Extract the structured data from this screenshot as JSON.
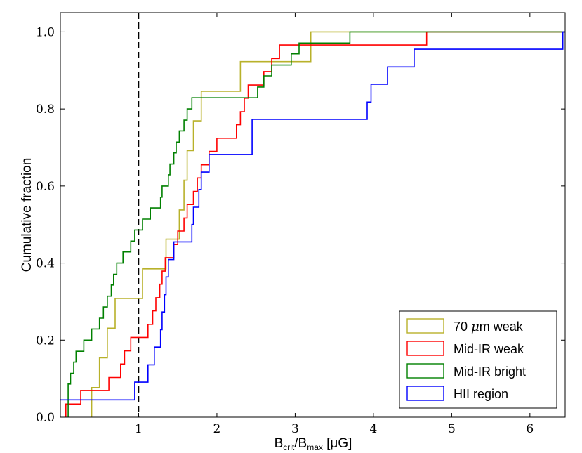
{
  "chart_data": {
    "type": "line",
    "step": true,
    "xlabel": {
      "base": "B",
      "sub1": "crit",
      "mid": "/B",
      "sub2": "max",
      "unit": " [μG]"
    },
    "ylabel": "Cumulative fraction",
    "xlim": [
      0,
      6.45
    ],
    "ylim": [
      0.0,
      1.05
    ],
    "xticks": [
      1,
      2,
      3,
      4,
      5,
      6
    ],
    "xtick_labels": [
      "1",
      "2",
      "3",
      "4",
      "5",
      "6"
    ],
    "yticks": [
      0.0,
      0.2,
      0.4,
      0.6,
      0.8,
      1.0
    ],
    "ytick_labels": [
      "0.0",
      "0.2",
      "0.4",
      "0.6",
      "0.8",
      "1.0"
    ],
    "vline": {
      "x": 1.0,
      "style": "dashed"
    },
    "legend_position": "bottom-right",
    "series": [
      {
        "name": "70 μm weak",
        "legend_label": {
          "num": "70 ",
          "mu": "μ",
          "rest": "m weak"
        },
        "color": "#b8b12a",
        "points": [
          [
            0.4,
            0.0
          ],
          [
            0.4,
            0.077
          ],
          [
            0.5,
            0.154
          ],
          [
            0.6,
            0.231
          ],
          [
            0.7,
            0.308
          ],
          [
            1.05,
            0.385
          ],
          [
            1.35,
            0.462
          ],
          [
            1.52,
            0.538
          ],
          [
            1.58,
            0.615
          ],
          [
            1.62,
            0.692
          ],
          [
            1.7,
            0.769
          ],
          [
            1.8,
            0.846
          ],
          [
            2.3,
            0.923
          ],
          [
            3.2,
            1.0
          ],
          [
            6.45,
            1.0
          ]
        ]
      },
      {
        "name": "Mid-IR weak",
        "color": "#ff0000",
        "points": [
          [
            0.07,
            0.0
          ],
          [
            0.07,
            0.034
          ],
          [
            0.26,
            0.069
          ],
          [
            0.62,
            0.103
          ],
          [
            0.77,
            0.138
          ],
          [
            0.82,
            0.172
          ],
          [
            0.9,
            0.207
          ],
          [
            1.12,
            0.241
          ],
          [
            1.18,
            0.276
          ],
          [
            1.22,
            0.31
          ],
          [
            1.27,
            0.345
          ],
          [
            1.3,
            0.379
          ],
          [
            1.34,
            0.414
          ],
          [
            1.45,
            0.448
          ],
          [
            1.5,
            0.483
          ],
          [
            1.58,
            0.517
          ],
          [
            1.62,
            0.552
          ],
          [
            1.7,
            0.586
          ],
          [
            1.75,
            0.621
          ],
          [
            1.8,
            0.655
          ],
          [
            1.9,
            0.69
          ],
          [
            2.0,
            0.724
          ],
          [
            2.25,
            0.759
          ],
          [
            2.3,
            0.793
          ],
          [
            2.35,
            0.828
          ],
          [
            2.4,
            0.862
          ],
          [
            2.6,
            0.897
          ],
          [
            2.7,
            0.931
          ],
          [
            2.8,
            0.966
          ],
          [
            4.68,
            1.0
          ],
          [
            6.45,
            1.0
          ]
        ]
      },
      {
        "name": "Mid-IR bright",
        "color": "#008000",
        "points": [
          [
            0.1,
            0.0
          ],
          [
            0.1,
            0.086
          ],
          [
            0.13,
            0.114
          ],
          [
            0.17,
            0.143
          ],
          [
            0.2,
            0.171
          ],
          [
            0.3,
            0.2
          ],
          [
            0.4,
            0.229
          ],
          [
            0.5,
            0.257
          ],
          [
            0.55,
            0.286
          ],
          [
            0.6,
            0.314
          ],
          [
            0.65,
            0.343
          ],
          [
            0.68,
            0.371
          ],
          [
            0.72,
            0.4
          ],
          [
            0.8,
            0.429
          ],
          [
            0.9,
            0.457
          ],
          [
            0.95,
            0.486
          ],
          [
            1.05,
            0.514
          ],
          [
            1.15,
            0.543
          ],
          [
            1.28,
            0.571
          ],
          [
            1.3,
            0.6
          ],
          [
            1.38,
            0.629
          ],
          [
            1.4,
            0.657
          ],
          [
            1.45,
            0.686
          ],
          [
            1.48,
            0.714
          ],
          [
            1.52,
            0.743
          ],
          [
            1.58,
            0.771
          ],
          [
            1.62,
            0.8
          ],
          [
            1.68,
            0.829
          ],
          [
            2.52,
            0.857
          ],
          [
            2.6,
            0.886
          ],
          [
            2.7,
            0.914
          ],
          [
            2.95,
            0.943
          ],
          [
            3.05,
            0.971
          ],
          [
            3.7,
            1.0
          ],
          [
            6.45,
            1.0
          ]
        ]
      },
      {
        "name": "HII region",
        "color": "#0000ff",
        "points": [
          [
            0.0,
            0.045
          ],
          [
            0.95,
            0.045
          ],
          [
            0.95,
            0.091
          ],
          [
            1.12,
            0.136
          ],
          [
            1.2,
            0.182
          ],
          [
            1.28,
            0.227
          ],
          [
            1.3,
            0.273
          ],
          [
            1.33,
            0.318
          ],
          [
            1.35,
            0.364
          ],
          [
            1.38,
            0.409
          ],
          [
            1.45,
            0.455
          ],
          [
            1.68,
            0.5
          ],
          [
            1.7,
            0.545
          ],
          [
            1.77,
            0.591
          ],
          [
            1.8,
            0.636
          ],
          [
            1.9,
            0.682
          ],
          [
            2.45,
            0.773
          ],
          [
            3.92,
            0.818
          ],
          [
            3.97,
            0.864
          ],
          [
            4.18,
            0.909
          ],
          [
            4.52,
            0.955
          ],
          [
            6.42,
            1.0
          ],
          [
            6.45,
            1.0
          ]
        ]
      }
    ]
  }
}
